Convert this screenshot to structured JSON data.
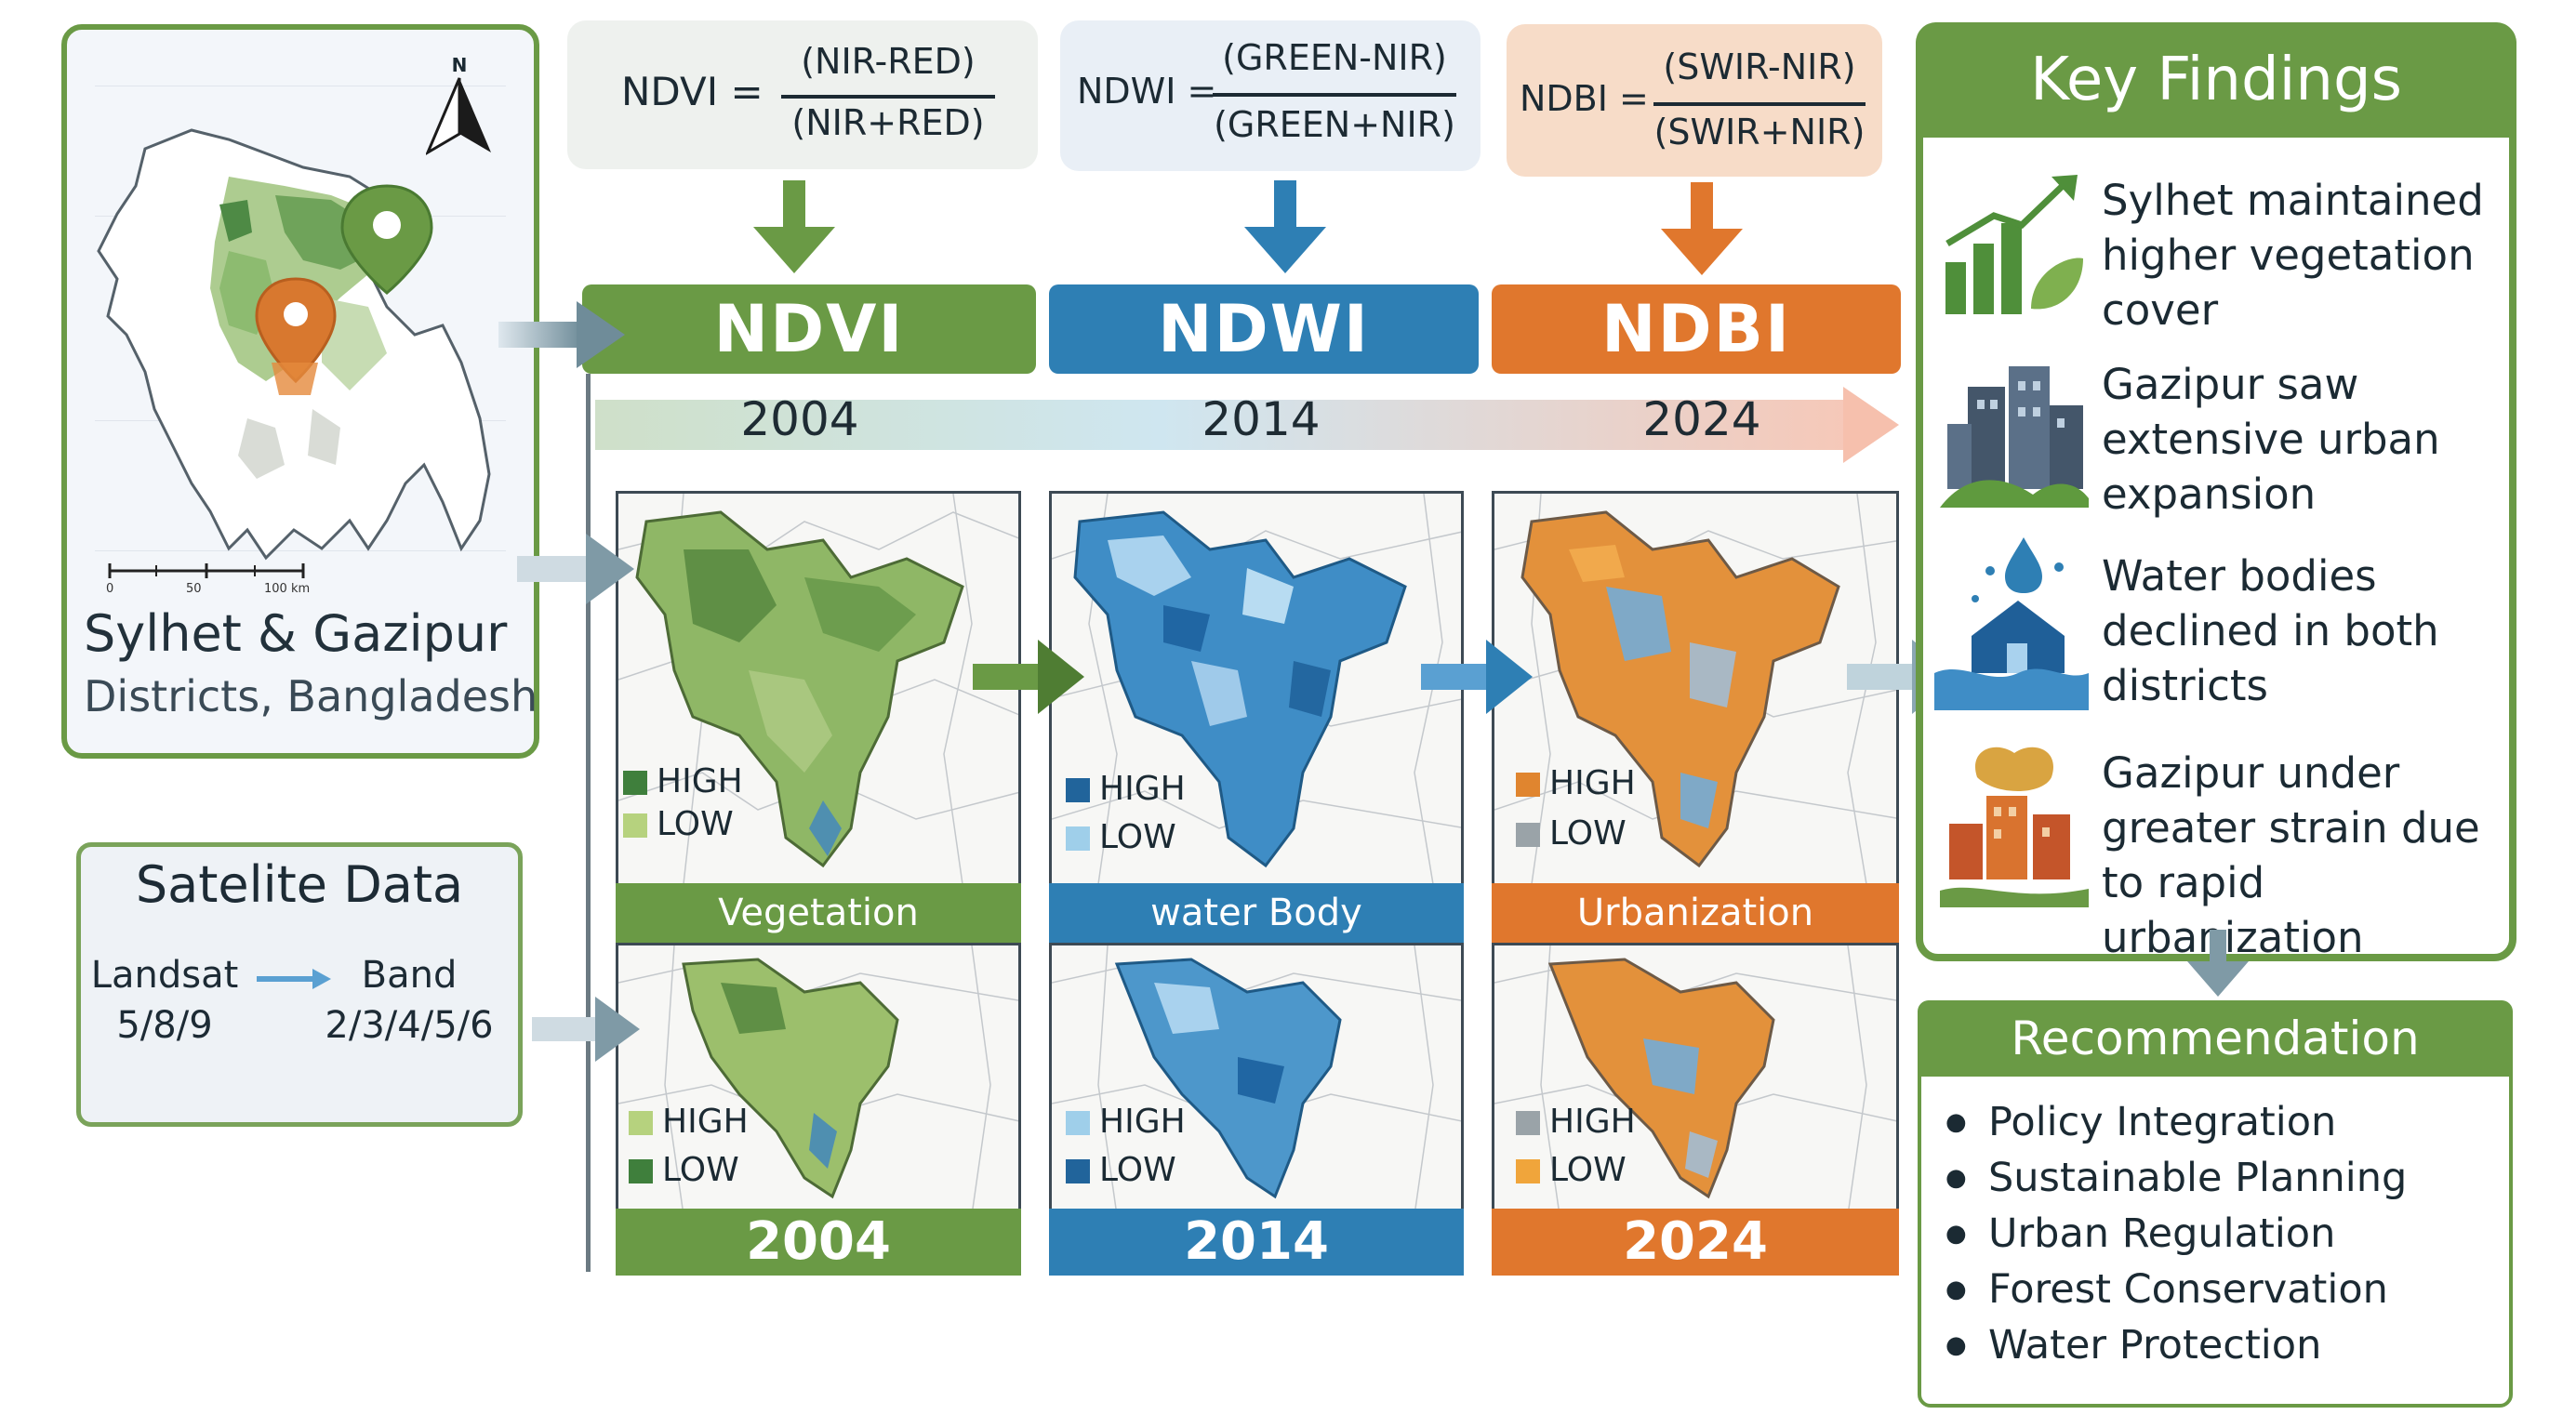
{
  "study_area": {
    "title": "Sylhet & Gazipur",
    "subtitle": "Districts, Bangladesh",
    "north_label": "N",
    "scale_labels": [
      "0",
      "50",
      "100 km"
    ]
  },
  "satellite": {
    "title": "Satelite Data",
    "source_label": "Landsat",
    "source_value": "5/8/9",
    "band_label": "Band",
    "band_value": "2/3/4/5/6"
  },
  "formulas": [
    {
      "name": "NDVI",
      "eq": "NDVI =",
      "numerator": "(NIR-RED)",
      "denominator": "(NIR+RED)"
    },
    {
      "name": "NDWI",
      "eq": "NDWI =",
      "numerator": "(GREEN-NIR)",
      "denominator": "(GREEN+NIR)"
    },
    {
      "name": "NDBI",
      "eq": "NDBI =",
      "numerator": "(SWIR-NIR)",
      "denominator": "(SWIR+NIR)"
    }
  ],
  "indices": [
    {
      "label": "NDVI",
      "color": "#6a9a45"
    },
    {
      "label": "NDWI",
      "color": "#2e7fb4"
    },
    {
      "label": "NDBI",
      "color": "#e0772d"
    }
  ],
  "timeline": [
    "2004",
    "2014",
    "2024"
  ],
  "panels_top": [
    {
      "caption": "Vegetation",
      "legend": [
        "HIGH",
        "LOW"
      ]
    },
    {
      "caption": "water Body",
      "legend": [
        "HIGH",
        "LOW"
      ]
    },
    {
      "caption": "Urbanization",
      "legend": [
        "HIGH",
        "LOW"
      ]
    }
  ],
  "panels_bottom": [
    {
      "year": "2004",
      "legend": [
        "HIGH",
        "LOW"
      ]
    },
    {
      "year": "2014",
      "legend": [
        "HIGH",
        "LOW"
      ]
    },
    {
      "year": "2024",
      "legend": [
        "HIGH",
        "LOW"
      ]
    }
  ],
  "key_findings": {
    "title": "Key Findings",
    "items": [
      {
        "text": "Sylhet maintained higher vegetation cover",
        "icon": "vegetation-growth-icon"
      },
      {
        "text": "Gazipur saw extensive urban expansion",
        "icon": "city-buildings-icon"
      },
      {
        "text": "Water bodies declined in both districts",
        "icon": "flood-house-icon"
      },
      {
        "text": "Gazipur under greater strain due to rapid urbanization",
        "icon": "urban-strain-icon"
      }
    ]
  },
  "recommendation": {
    "title": "Recommendation",
    "items": [
      "Policy Integration",
      "Sustainable Planning",
      "Urban Regulation",
      "Forest Conservation",
      "Water Protection"
    ]
  }
}
